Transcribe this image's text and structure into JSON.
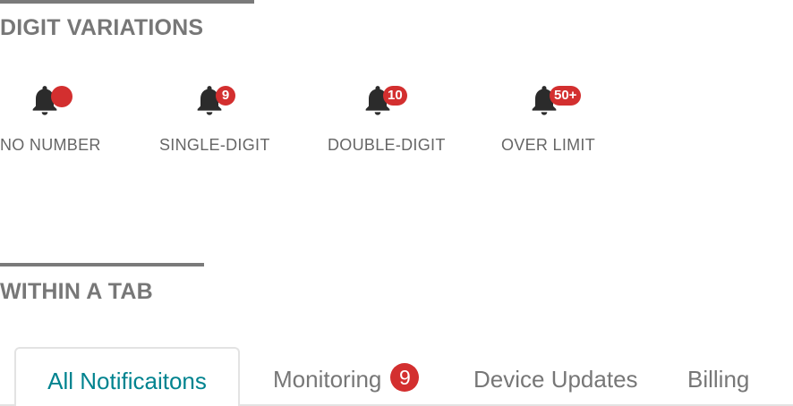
{
  "sections": {
    "digit_variations": {
      "title": "DIGIT VARIATIONS"
    },
    "within_tab": {
      "title": "WITHIN A TAB"
    }
  },
  "variations": [
    {
      "label": "NO NUMBER",
      "icon": "bell-icon",
      "badge": ""
    },
    {
      "label": "SINGLE-DIGIT",
      "icon": "bell-icon",
      "badge": "9"
    },
    {
      "label": "DOUBLE-DIGIT",
      "icon": "bell-icon",
      "badge": "10"
    },
    {
      "label": "OVER LIMIT",
      "icon": "bell-icon",
      "badge": "50+"
    }
  ],
  "tabs": [
    {
      "label": "All Notificaitons",
      "active": true
    },
    {
      "label": "Monitoring",
      "badge": "9"
    },
    {
      "label": "Device Updates"
    },
    {
      "label": "Billing"
    }
  ],
  "colors": {
    "badge": "#d32f2f",
    "active_tab_text": "#00838f",
    "heading": "#777777",
    "icon": "#2b2b2b"
  }
}
